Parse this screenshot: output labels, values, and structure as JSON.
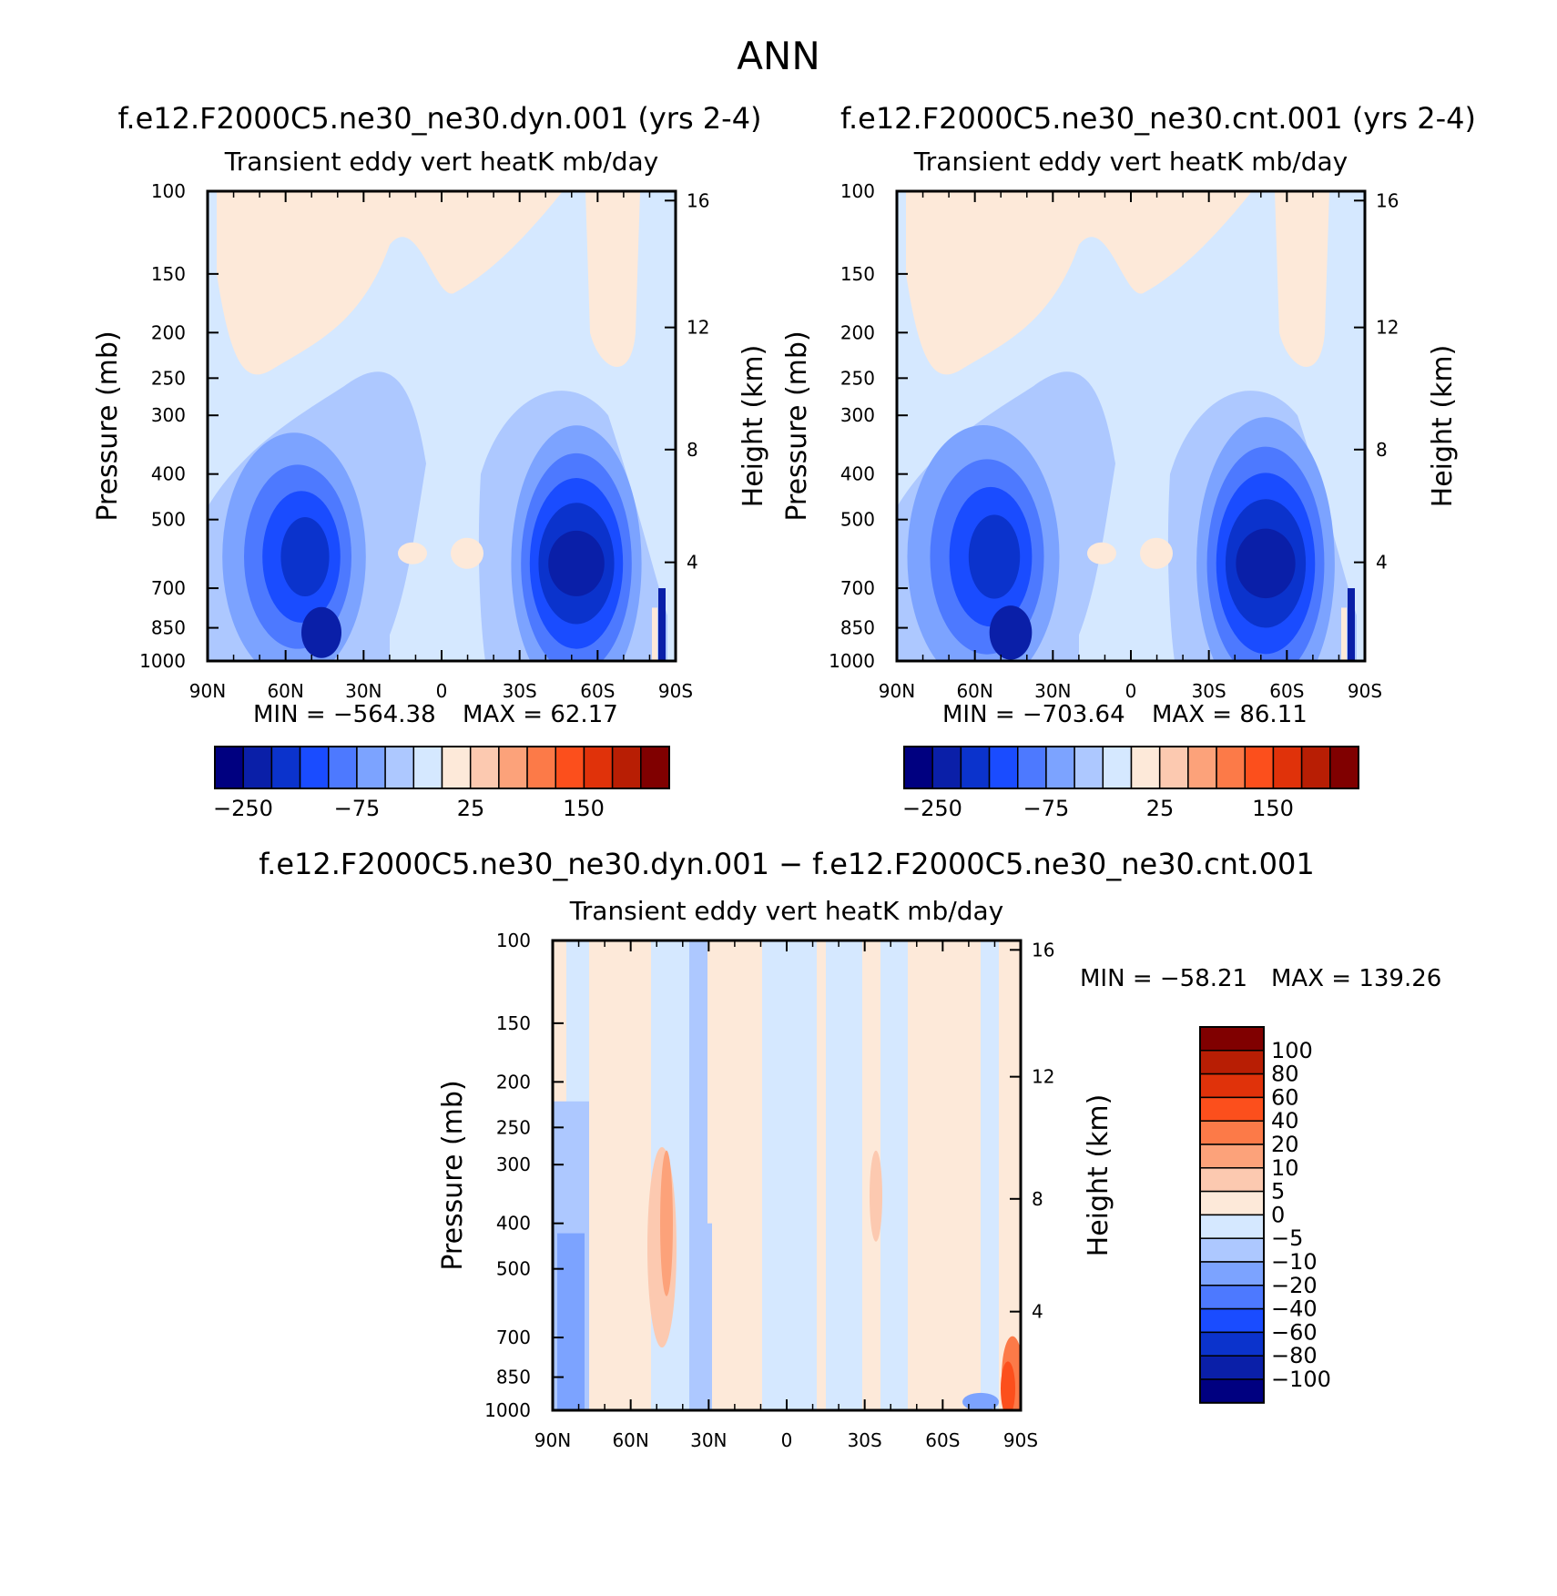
{
  "figure_title": "ANN",
  "colors": {
    "neg": [
      "#000080",
      "#0a1fa8",
      "#0b33cc",
      "#1a4cff",
      "#4d79ff",
      "#7ca3ff",
      "#adc8ff",
      "#d5e8ff"
    ],
    "pos": [
      "#fde9d9",
      "#fcc9b0",
      "#fca27a",
      "#fc7a48",
      "#fc4f1c",
      "#e0320a",
      "#b81e04",
      "#800000"
    ]
  },
  "chart_data": [
    {
      "type": "heatmap",
      "panel": "dyn",
      "case_title": "f.e12.F2000C5.ne30_ne30.dyn.001 (yrs 2-4)",
      "subtitle": "Transient eddy vert heatK mb/day",
      "ylabel": "Pressure (mb)",
      "y2label": "Height (km)",
      "x_ticks": [
        "90N",
        "60N",
        "30N",
        "0",
        "30S",
        "60S",
        "90S"
      ],
      "x_range": [
        90,
        -90
      ],
      "y_ticks": [
        100,
        150,
        200,
        250,
        300,
        400,
        500,
        700,
        850,
        1000
      ],
      "y_range": [
        100,
        1000
      ],
      "height_ticks": [
        16,
        12,
        8,
        4
      ],
      "min_label": "MIN = −564.38",
      "max_label": "MAX =   62.17",
      "min": -564.38,
      "max": 62.17,
      "colorbar_labels": [
        "−250",
        "−75",
        "25",
        "150"
      ]
    },
    {
      "type": "heatmap",
      "panel": "cnt",
      "case_title": "f.e12.F2000C5.ne30_ne30.cnt.001 (yrs 2-4)",
      "subtitle": "Transient eddy vert heatK mb/day",
      "ylabel": "Pressure (mb)",
      "y2label": "Height (km)",
      "x_ticks": [
        "90N",
        "60N",
        "30N",
        "0",
        "30S",
        "60S",
        "90S"
      ],
      "x_range": [
        90,
        -90
      ],
      "y_ticks": [
        100,
        150,
        200,
        250,
        300,
        400,
        500,
        700,
        850,
        1000
      ],
      "y_range": [
        100,
        1000
      ],
      "height_ticks": [
        16,
        12,
        8,
        4
      ],
      "min_label": "MIN = −703.64",
      "max_label": "MAX =   86.11",
      "min": -703.64,
      "max": 86.11,
      "colorbar_labels": [
        "−250",
        "−75",
        "25",
        "150"
      ]
    },
    {
      "type": "heatmap",
      "panel": "diff",
      "case_title": "f.e12.F2000C5.ne30_ne30.dyn.001 − f.e12.F2000C5.ne30_ne30.cnt.001",
      "subtitle": "Transient eddy vert heatK mb/day",
      "ylabel": "Pressure (mb)",
      "y2label": "Height (km)",
      "x_ticks": [
        "90N",
        "60N",
        "30N",
        "0",
        "30S",
        "60S",
        "90S"
      ],
      "x_range": [
        90,
        -90
      ],
      "y_ticks": [
        100,
        150,
        200,
        250,
        300,
        400,
        500,
        700,
        850,
        1000
      ],
      "y_range": [
        100,
        1000
      ],
      "height_ticks": [
        16,
        12,
        8,
        4
      ],
      "min_label": "MIN = −58.21",
      "max_label": "MAX = 139.26",
      "min": -58.21,
      "max": 139.26,
      "colorbar_labels": [
        "100",
        "80",
        "60",
        "40",
        "20",
        "10",
        "5",
        "0",
        "−5",
        "−10",
        "−20",
        "−40",
        "−60",
        "−80",
        "−100"
      ]
    }
  ]
}
